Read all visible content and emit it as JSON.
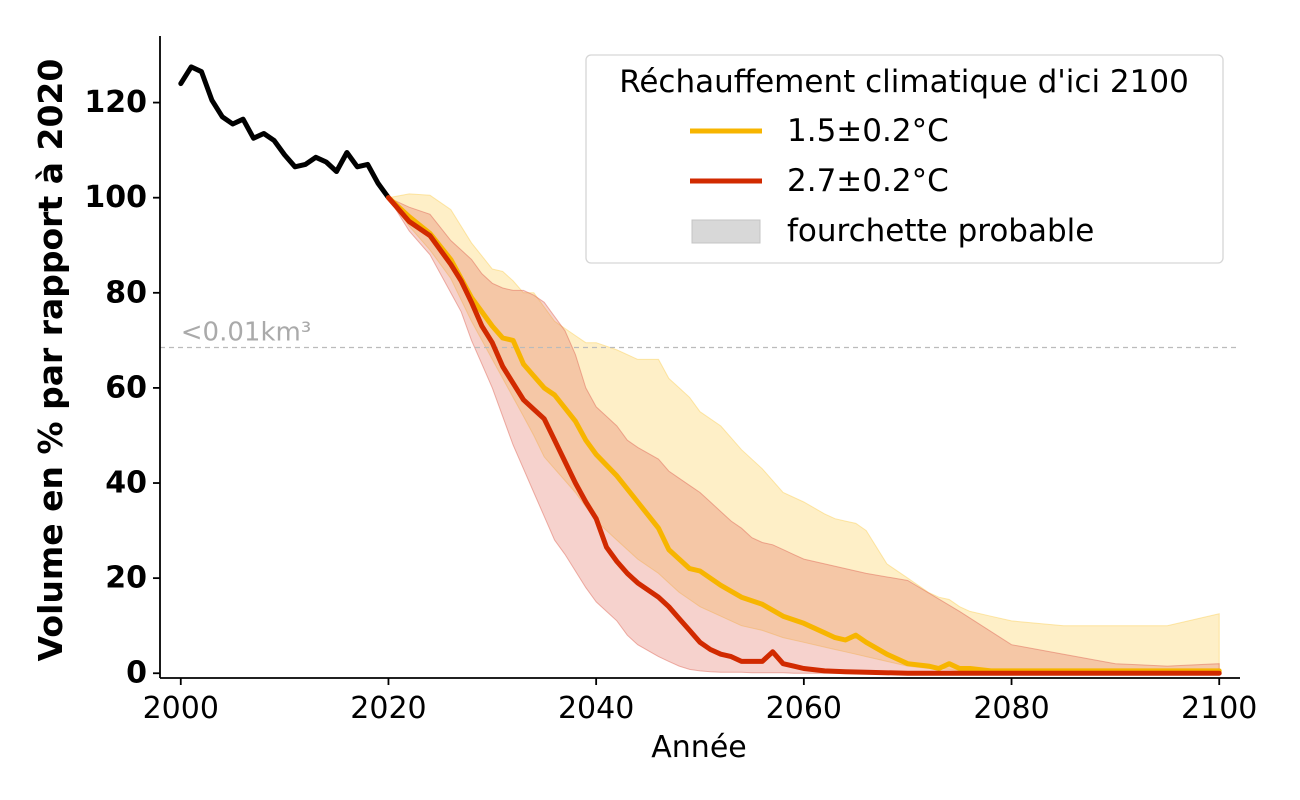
{
  "chart_data": {
    "type": "line",
    "xlabel": "Année",
    "ylabel": "Volume en % par rapport à 2020",
    "xlim": [
      1998,
      2102
    ],
    "ylim": [
      -1,
      134
    ],
    "x_ticks": [
      2000,
      2020,
      2040,
      2060,
      2080,
      2100
    ],
    "y_ticks": [
      0,
      20,
      40,
      60,
      80,
      100,
      120
    ],
    "grid": false,
    "legend": {
      "title": "Réchauffement climatique d'ici 2100",
      "placement": "top-right"
    },
    "annotation": {
      "text": "<0.01km³",
      "y": 68.5,
      "color": "#aaaaaa"
    },
    "series": [
      {
        "key": "observed",
        "color": "#000000",
        "x": [
          2000,
          2001,
          2002,
          2003,
          2004,
          2005,
          2006,
          2007,
          2008,
          2009,
          2010,
          2011,
          2012,
          2013,
          2014,
          2015,
          2016,
          2017,
          2018,
          2019,
          2020
        ],
        "y": [
          124,
          127.5,
          126.5,
          120.5,
          117,
          115.5,
          116.5,
          112.5,
          113.5,
          112,
          109,
          106.5,
          107,
          108.5,
          107.5,
          105.5,
          109.5,
          106.5,
          107,
          103,
          100
        ]
      },
      {
        "name": "1.5±0.2°C",
        "color": "#f7b500",
        "band_color": "#fbd25e",
        "band_opacity": 0.35,
        "x": [
          2020,
          2022,
          2024,
          2026,
          2028,
          2030,
          2031,
          2032,
          2033,
          2034,
          2035,
          2036,
          2038,
          2039,
          2040,
          2042,
          2044,
          2046,
          2047,
          2048,
          2049,
          2050,
          2052,
          2054,
          2056,
          2058,
          2060,
          2062,
          2063,
          2064,
          2065,
          2066,
          2068,
          2070,
          2072,
          2073,
          2074,
          2075,
          2076,
          2078,
          2080,
          2085,
          2090,
          2095,
          2100
        ],
        "y": [
          100,
          96,
          92.5,
          87,
          79,
          73,
          70.5,
          70,
          65,
          62.5,
          60,
          58.5,
          53,
          49,
          46,
          41.5,
          36,
          30.5,
          26,
          24,
          22,
          21.5,
          18.5,
          16,
          14.5,
          12,
          10.5,
          8.5,
          7.5,
          7,
          8,
          6.5,
          4,
          2,
          1.5,
          1,
          2,
          1,
          1,
          0.5,
          0.5,
          0.5,
          0.5,
          0.5,
          0.5
        ],
        "lower": [
          100,
          94,
          89,
          83,
          74,
          66,
          62,
          58,
          54,
          50,
          45.5,
          43,
          38,
          35,
          32,
          28,
          24,
          21,
          19,
          17,
          15.5,
          14,
          12,
          10,
          9,
          7.5,
          6.5,
          5.5,
          5,
          4.5,
          4,
          3.5,
          2.5,
          1.5,
          1,
          1,
          0.8,
          0.5,
          0.5,
          0.3,
          0.3,
          0.2,
          0.2,
          0.2,
          0.2
        ],
        "upper": [
          100,
          100.8,
          100.5,
          97.5,
          90.5,
          85,
          84.5,
          82.5,
          80,
          80,
          77,
          74,
          71,
          69.5,
          69.5,
          68,
          66,
          66,
          62,
          60,
          58,
          55,
          52,
          47,
          43,
          38,
          36,
          33.5,
          32.5,
          32,
          31.5,
          30,
          23,
          20,
          17,
          16,
          15.5,
          14,
          13,
          12,
          11,
          10,
          10,
          10,
          12.5
        ]
      },
      {
        "name": "2.7±0.2°C",
        "color": "#d12a00",
        "band_color": "#e06a5a",
        "band_opacity": 0.3,
        "x": [
          2020,
          2022,
          2024,
          2026,
          2027,
          2028,
          2029,
          2030,
          2031,
          2032,
          2033,
          2034,
          2035,
          2036,
          2037,
          2038,
          2039,
          2040,
          2041,
          2042,
          2043,
          2044,
          2046,
          2047,
          2048,
          2049,
          2050,
          2051,
          2052,
          2053,
          2054,
          2055,
          2056,
          2057,
          2058,
          2059,
          2060,
          2062,
          2064,
          2066,
          2070,
          2075,
          2080,
          2085,
          2090,
          2095,
          2100
        ],
        "y": [
          100,
          95,
          92,
          86,
          82.5,
          78,
          73,
          69.5,
          64.5,
          61,
          57.5,
          55.5,
          53.5,
          49,
          44.5,
          40,
          36,
          32.5,
          26.5,
          23.5,
          21,
          19,
          16,
          14,
          11.5,
          9,
          6.5,
          5,
          4,
          3.5,
          2.5,
          2.5,
          2.5,
          4.5,
          2,
          1.5,
          1,
          0.5,
          0.3,
          0.2,
          0,
          0,
          0,
          0,
          0,
          0,
          0
        ],
        "lower": [
          100,
          93,
          88,
          80,
          76,
          70,
          65,
          60,
          54,
          48,
          43,
          38,
          33,
          28,
          25,
          21.5,
          18,
          15,
          13,
          11,
          8,
          6,
          3.5,
          2.5,
          1.5,
          0.8,
          0.5,
          0.3,
          0.2,
          0.2,
          0.2,
          0.1,
          0.1,
          0.1,
          0.1,
          0,
          0,
          0,
          0,
          0,
          0,
          0,
          0,
          0,
          0,
          0,
          0
        ],
        "upper": [
          100,
          98,
          96.5,
          91,
          89,
          87,
          84,
          82,
          81,
          80.5,
          80.5,
          79.5,
          78,
          75,
          72,
          67,
          60,
          56,
          54,
          52,
          49,
          47.5,
          45,
          42.5,
          41,
          39.5,
          38,
          36,
          34,
          32,
          30.5,
          28.5,
          27.5,
          27,
          26,
          25,
          24,
          23,
          22,
          21,
          19.5,
          13,
          6,
          4,
          2,
          1.5,
          2
        ]
      }
    ],
    "band_legend_label": "fourchette probable"
  }
}
